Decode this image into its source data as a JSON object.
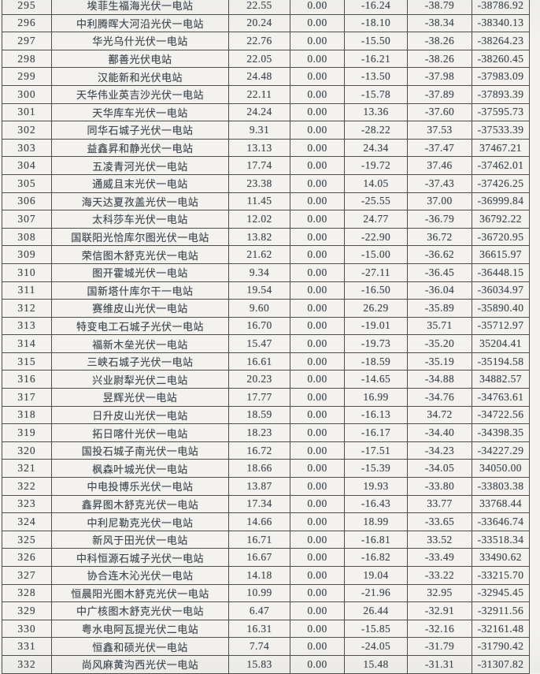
{
  "colors": {
    "ink": "#434c55",
    "line": "#4e4e4e",
    "paper": "#f3f2ee"
  },
  "table": {
    "description": "scanned list of photovoltaic power stations, rows 295-332, no visible header row",
    "rows": [
      [
        "295",
        "埃菲生福海光伏一电站",
        "22.55",
        "0.00",
        "-16.24",
        "-38.79",
        "-38786.92"
      ],
      [
        "296",
        "中利腾晖大河沿光伏一电站",
        "20.24",
        "0.00",
        "-18.10",
        "-38.34",
        "-38340.13"
      ],
      [
        "297",
        "华光乌什光伏一电站",
        "22.76",
        "0.00",
        "-15.50",
        "-38.26",
        "-38264.23"
      ],
      [
        "298",
        "鄯善光伏电站",
        "22.05",
        "0.00",
        "-16.21",
        "-38.26",
        "-38260.45"
      ],
      [
        "299",
        "汉能新和光伏电站",
        "24.48",
        "0.00",
        "-13.50",
        "-37.98",
        "-37983.09"
      ],
      [
        "300",
        "天华伟业英吉沙光伏一电站",
        "22.11",
        "0.00",
        "-15.78",
        "-37.89",
        "-37893.39"
      ],
      [
        "301",
        "天华库车光伏一电站",
        "24.24",
        "0.00",
        "13.36",
        "-37.60",
        "-37595.73"
      ],
      [
        "302",
        "同华石城子光伏一电站",
        "9.31",
        "0.00",
        "-28.22",
        "37.53",
        "-37533.39"
      ],
      [
        "303",
        "益鑫昇和静光伏一电站",
        "13.13",
        "0.00",
        "24.34",
        "-37.47",
        "37467.21"
      ],
      [
        "304",
        "五凌青河光伏一电站",
        "17.74",
        "0.00",
        "-19.72",
        "37.46",
        "-37462.01"
      ],
      [
        "305",
        "通威且末光伏一电站",
        "23.38",
        "0.00",
        "14.05",
        "-37.43",
        "-37426.25"
      ],
      [
        "306",
        "海天达夏孜盖光伏一电站",
        "11.45",
        "0.00",
        "-25.55",
        "37.00",
        "-36999.84"
      ],
      [
        "307",
        "太科莎车光伏一电站",
        "12.02",
        "0.00",
        "24.77",
        "-36.79",
        "36792.22"
      ],
      [
        "308",
        "国联阳光恰库尔图光伏一电站",
        "13.82",
        "0.00",
        "-22.90",
        "36.72",
        "-36720.95"
      ],
      [
        "309",
        "荣信图木舒克光伏一电站",
        "21.62",
        "0.00",
        "-15.00",
        "-36.62",
        "36615.97"
      ],
      [
        "310",
        "图开霍城光伏一电站",
        "9.34",
        "0.00",
        "-27.11",
        "-36.45",
        "-36448.15"
      ],
      [
        "311",
        "国新塔什库尔干一电站",
        "19.54",
        "0.00",
        "-16.50",
        "-36.04",
        "-36034.97"
      ],
      [
        "312",
        "赛维皮山光伏一电站",
        "9.60",
        "0.00",
        "26.29",
        "-35.89",
        "-35890.40"
      ],
      [
        "313",
        "特变电工石城子光伏一电站",
        "16.70",
        "0.00",
        "-19.01",
        "35.71",
        "-35712.97"
      ],
      [
        "314",
        "福新木垒光伏一电站",
        "15.47",
        "0.00",
        "-19.73",
        "-35.20",
        "35204.41"
      ],
      [
        "315",
        "三峡石城子光伏一电站",
        "16.61",
        "0.00",
        "-18.59",
        "-35.19",
        "-35194.58"
      ],
      [
        "316",
        "兴业尉犁光伏二电站",
        "20.23",
        "0.00",
        "-14.65",
        "-34.88",
        "34882.57"
      ],
      [
        "317",
        "昱辉光伏一电站",
        "17.77",
        "0.00",
        "16.99",
        "-34.76",
        "-34763.61"
      ],
      [
        "318",
        "日升皮山光伏一电站",
        "18.59",
        "0.00",
        "-16.13",
        "34.72",
        "-34722.56"
      ],
      [
        "319",
        "拓日喀什光伏一电站",
        "18.23",
        "0.00",
        "-16.17",
        "-34.40",
        "-34398.35"
      ],
      [
        "320",
        "国投石城子南光伏一电站",
        "16.72",
        "0.00",
        "-17.51",
        "-34.23",
        "-34227.29"
      ],
      [
        "321",
        "枫森叶城光伏一电站",
        "18.66",
        "0.00",
        "-15.39",
        "-34.05",
        "34050.00"
      ],
      [
        "322",
        "中电投博乐光伏一电站",
        "13.87",
        "0.00",
        "19.93",
        "-33.80",
        "-33803.38"
      ],
      [
        "323",
        "鑫昇图木舒克光伏一电站",
        "17.34",
        "0.00",
        "-16.43",
        "33.77",
        "33768.44"
      ],
      [
        "324",
        "中利尼勒克光伏一电站",
        "14.66",
        "0.00",
        "18.99",
        "-33.65",
        "-33646.74"
      ],
      [
        "325",
        "新风于田光伏一电站",
        "16.71",
        "0.00",
        "-16.81",
        "33.52",
        "-33518.34"
      ],
      [
        "326",
        "中科恒源石城子光伏一电站",
        "16.67",
        "0.00",
        "-16.82",
        "-33.49",
        "33490.62"
      ],
      [
        "327",
        "协合连木沁光伏一电站",
        "14.18",
        "0.00",
        "19.04",
        "-33.22",
        "-33215.70"
      ],
      [
        "328",
        "恒晨阳光图木舒克光伏一电站",
        "10.99",
        "0.00",
        "-21.96",
        "32.95",
        "-32945.45"
      ],
      [
        "329",
        "中广核图木舒克光伏一电站",
        "6.47",
        "0.00",
        "26.44",
        "-32.91",
        "-32911.56"
      ],
      [
        "330",
        "粤水电阿瓦提光伏二电站",
        "16.31",
        "0.00",
        "-15.85",
        "-32.16",
        "-32161.48"
      ],
      [
        "331",
        "恒鑫和硕光伏一电站",
        "7.74",
        "0.00",
        "-24.05",
        "-31.79",
        "-31790.42"
      ],
      [
        "332",
        "尚风麻黄沟西光伏一电站",
        "15.83",
        "0.00",
        "15.48",
        "-31.31",
        "-31307.82"
      ]
    ]
  }
}
